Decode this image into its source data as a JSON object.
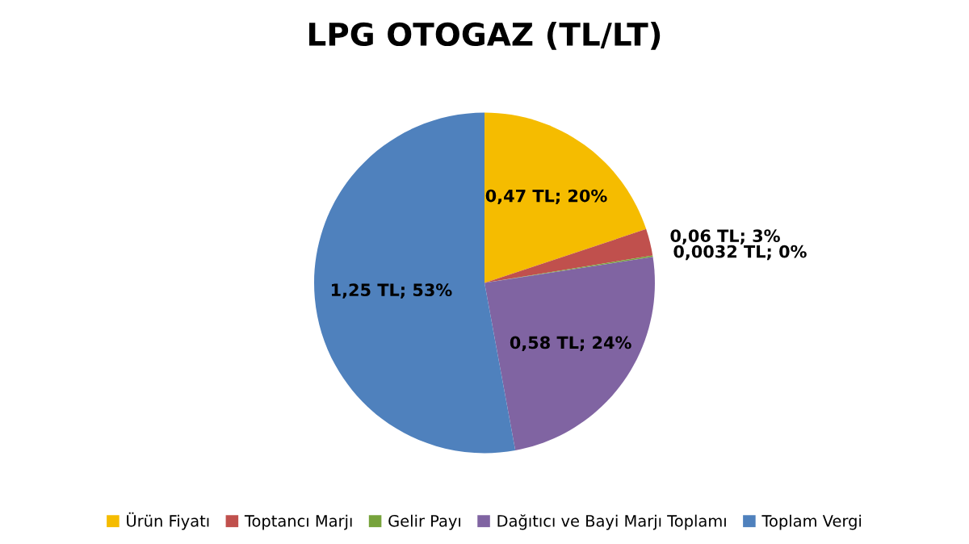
{
  "chart_data": {
    "type": "pie",
    "title": "LPG OTOGAZ (TL/LT)",
    "categories": [
      "Ürün Fiyatı",
      "Toptancı Marjı",
      "Gelir Payı",
      "Dağıtıcı ve Bayi Marjı Toplamı",
      "Toplam Vergi"
    ],
    "values": [
      0.47,
      0.06,
      0.0032,
      0.58,
      1.25
    ],
    "colors": [
      "#f5bc00",
      "#c0504d",
      "#77a33c",
      "#8064a2",
      "#4f81bd"
    ],
    "value_labels": [
      "0,47 TL; 20%",
      "0,06 TL; 3%",
      "0,0032 TL; 0%",
      "0,58 TL; 24%",
      "1,25 TL; 53%"
    ],
    "legend": "bottom"
  }
}
